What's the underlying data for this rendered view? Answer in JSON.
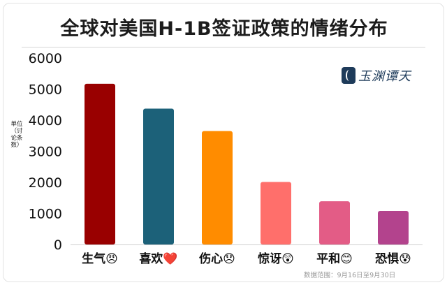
{
  "title": "全球对美国H-1B签证政策的情绪分布",
  "ylabel": "单位（讨论条数）",
  "watermark": "玉渊谭天",
  "source_note": "数据范围：9月16日至9月30日",
  "chart_data": {
    "type": "bar",
    "title": "全球对美国H-1B签证政策的情绪分布",
    "xlabel": "",
    "ylabel": "单位（讨论条数）",
    "ylim": [
      0,
      6000
    ],
    "yticks": [
      0,
      1000,
      2000,
      3000,
      4000,
      5000,
      6000
    ],
    "grid": false,
    "categories": [
      "生气😠",
      "喜欢❤️",
      "伤心😞",
      "惊讶😲",
      "平和😊",
      "恐惧😰"
    ],
    "values": [
      5170,
      4370,
      3650,
      2010,
      1390,
      1080
    ],
    "colors": [
      "#990000",
      "#1c6179",
      "#ff8c00",
      "#ff6f6b",
      "#e35c86",
      "#b3438d"
    ]
  }
}
